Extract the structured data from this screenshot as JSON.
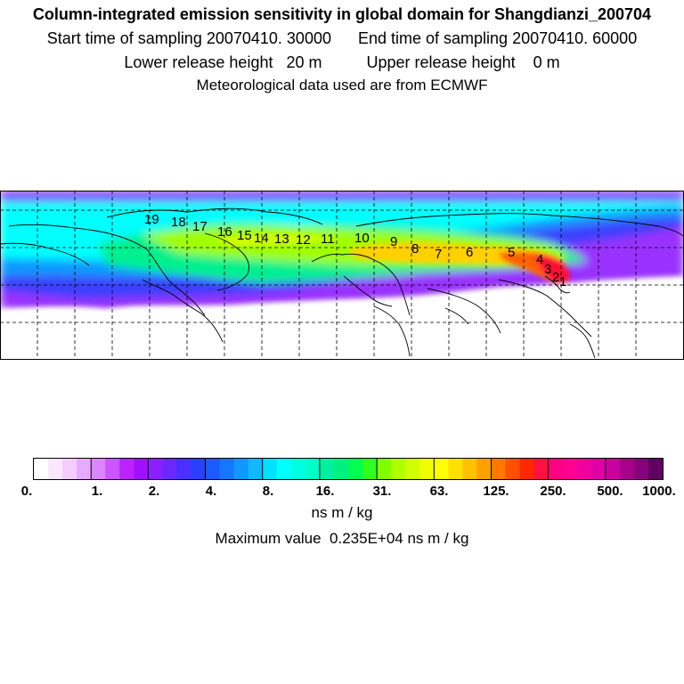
{
  "header": {
    "title": "Column-integrated emission sensitivity in global domain for Shangdianzi_200704",
    "sampling": "Start time of sampling 20070410. 30000      End time of sampling 20070410. 60000",
    "release": "Lower release height   20 m          Upper release height    0 m",
    "met": "Meteorological data used are from ECMWF"
  },
  "map": {
    "trajectory_labels": [
      "1",
      "2",
      "3",
      "4",
      "5",
      "6",
      "7",
      "8",
      "9",
      "10",
      "11",
      "12",
      "13",
      "14",
      "15",
      "16",
      "17",
      "18",
      "19"
    ]
  },
  "colorbar": {
    "tick_labels": [
      "0.",
      "1.",
      "2.",
      "4.",
      "8.",
      "16.",
      "31.",
      "63.",
      "125.",
      "250.",
      "500.",
      "1000."
    ],
    "units": "ns m / kg",
    "colors": [
      "#ffffff",
      "#fbe6ff",
      "#f4ccff",
      "#e8aaff",
      "#db85ff",
      "#cc55ff",
      "#bb22ff",
      "#a010ff",
      "#8a20ff",
      "#6a28ff",
      "#4a30ff",
      "#2a40ff",
      "#1a5aff",
      "#1478ff",
      "#1098ff",
      "#10b8ff",
      "#00e0ff",
      "#00ffff",
      "#00ffe0",
      "#00ffc8",
      "#00f0a0",
      "#00f080",
      "#00ff50",
      "#30ff20",
      "#80ff00",
      "#b0ff00",
      "#d0ff00",
      "#f0ff00",
      "#ffff00",
      "#ffe000",
      "#ffc000",
      "#ffa000",
      "#ff7800",
      "#ff5000",
      "#ff2800",
      "#ff1040",
      "#ff0080",
      "#ff0090",
      "#f000a0",
      "#e000a8",
      "#c800a0",
      "#a8008c",
      "#88007a",
      "#600060"
    ]
  },
  "footer": {
    "max_value": "Maximum value  0.235E+04 ns m / kg"
  }
}
